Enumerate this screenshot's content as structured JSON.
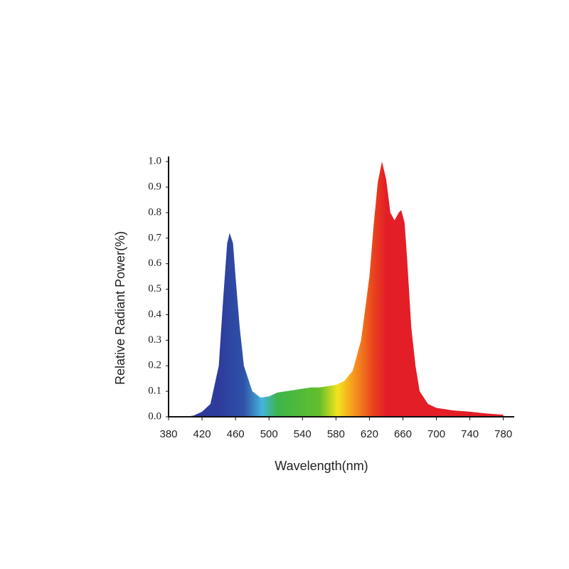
{
  "chart_data": {
    "type": "area",
    "x_label": "Wavelength(nm)",
    "y_label": "Relative Radiant Power(%)",
    "x": [
      400,
      410,
      420,
      430,
      440,
      445,
      450,
      453,
      457,
      460,
      465,
      470,
      480,
      490,
      500,
      510,
      520,
      530,
      540,
      550,
      560,
      570,
      580,
      590,
      600,
      610,
      620,
      625,
      630,
      635,
      640,
      645,
      650,
      655,
      658,
      662,
      665,
      670,
      675,
      680,
      690,
      700,
      720,
      740,
      760,
      780
    ],
    "values": [
      0.0,
      0.005,
      0.02,
      0.05,
      0.2,
      0.45,
      0.68,
      0.72,
      0.68,
      0.55,
      0.35,
      0.2,
      0.1,
      0.075,
      0.08,
      0.095,
      0.1,
      0.105,
      0.11,
      0.115,
      0.115,
      0.12,
      0.125,
      0.14,
      0.18,
      0.3,
      0.55,
      0.75,
      0.92,
      1.0,
      0.93,
      0.8,
      0.77,
      0.8,
      0.81,
      0.76,
      0.62,
      0.35,
      0.2,
      0.1,
      0.05,
      0.035,
      0.025,
      0.02,
      0.013,
      0.008
    ],
    "gradient": [
      {
        "x": 440,
        "color": "#2d3c9c"
      },
      {
        "x": 470,
        "color": "#2f52a8"
      },
      {
        "x": 492,
        "color": "#45b4dc"
      },
      {
        "x": 510,
        "color": "#3db54a"
      },
      {
        "x": 560,
        "color": "#62be2c"
      },
      {
        "x": 582,
        "color": "#f2e41e"
      },
      {
        "x": 602,
        "color": "#f7941d"
      },
      {
        "x": 625,
        "color": "#e8421d"
      },
      {
        "x": 640,
        "color": "#e31e26"
      },
      {
        "x": 780,
        "color": "#e31e26"
      }
    ],
    "xlim": [
      380,
      793
    ],
    "ylim": [
      0,
      1.02
    ],
    "xticks": [
      380,
      420,
      460,
      500,
      540,
      580,
      620,
      660,
      700,
      740,
      780
    ],
    "yticks": [
      {
        "value": 0,
        "label": "0.0"
      },
      0.1,
      0.2,
      0.3,
      0.4,
      0.5,
      0.6,
      0.7,
      0.8,
      0.9,
      {
        "value": 1,
        "label": "1.0"
      }
    ]
  }
}
